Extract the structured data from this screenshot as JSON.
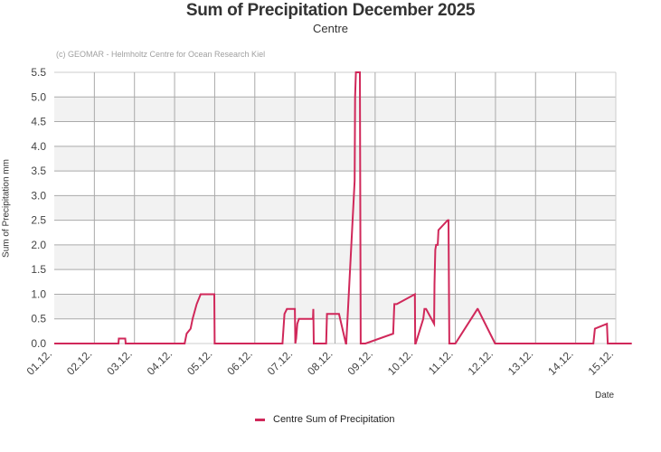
{
  "chart_data": {
    "type": "line",
    "title": "Sum of Precipitation December 2025",
    "subtitle": "Centre",
    "credit": "(c) GEOMAR - Helmholtz Centre for Ocean Research Kiel",
    "xlabel": "Date",
    "ylabel": "Sum of Precipitation mm",
    "ylim": [
      0,
      5.5
    ],
    "yticks": [
      "0.0",
      "0.5",
      "1.0",
      "1.5",
      "2.0",
      "2.5",
      "3.0",
      "3.5",
      "4.0",
      "4.5",
      "5.0",
      "5.5"
    ],
    "xticks": [
      "01.12.",
      "02.12.",
      "03.12.",
      "04.12.",
      "05.12.",
      "06.12.",
      "07.12.",
      "08.12.",
      "09.12.",
      "10.12.",
      "11.12.",
      "12.12.",
      "13.12.",
      "14.12.",
      "15.12."
    ],
    "grid": true,
    "legend_position": "bottom",
    "series": [
      {
        "name": "Centre Sum of Precipitation",
        "color": "#d0285a",
        "x_day": [
          1.0,
          2.6,
          2.61,
          2.77,
          2.78,
          4.25,
          4.3,
          4.4,
          4.45,
          4.55,
          4.65,
          4.75,
          4.99,
          5.0,
          6.69,
          6.74,
          6.8,
          7.0,
          7.01,
          7.03,
          7.06,
          7.1,
          7.45,
          7.46,
          7.47,
          7.78,
          7.8,
          8.1,
          8.27,
          8.28,
          8.49,
          8.5,
          8.52,
          8.62,
          8.64,
          8.75,
          8.76,
          9.45,
          9.48,
          9.54,
          9.99,
          10.0,
          10.01,
          10.2,
          10.23,
          10.27,
          10.47,
          10.48,
          10.5,
          10.52,
          10.56,
          10.58,
          10.81,
          10.83,
          10.85,
          10.98,
          11.0,
          11.55,
          11.56,
          11.99,
          12.0,
          14.44,
          14.48,
          14.78,
          14.8,
          15.4
        ],
        "values": [
          0,
          0,
          0.1,
          0.1,
          0,
          0,
          0.2,
          0.3,
          0.5,
          0.8,
          1.0,
          1.0,
          1.0,
          0,
          0,
          0.6,
          0.7,
          0.7,
          0,
          0.1,
          0.4,
          0.5,
          0.5,
          0.7,
          0,
          0,
          0.6,
          0.6,
          0,
          0,
          3.3,
          5.0,
          5.5,
          5.5,
          0,
          0,
          0,
          0.2,
          0.8,
          0.8,
          1.0,
          0,
          0,
          0.5,
          0.7,
          0.7,
          0.4,
          1.2,
          1.9,
          2.0,
          2.0,
          2.3,
          2.5,
          2.5,
          0,
          0,
          0,
          0.7,
          0.7,
          0,
          0,
          0,
          0.3,
          0.4,
          0,
          0
        ]
      }
    ]
  },
  "legend": {
    "label": "Centre Sum of Precipitation",
    "color": "#d0285a"
  }
}
